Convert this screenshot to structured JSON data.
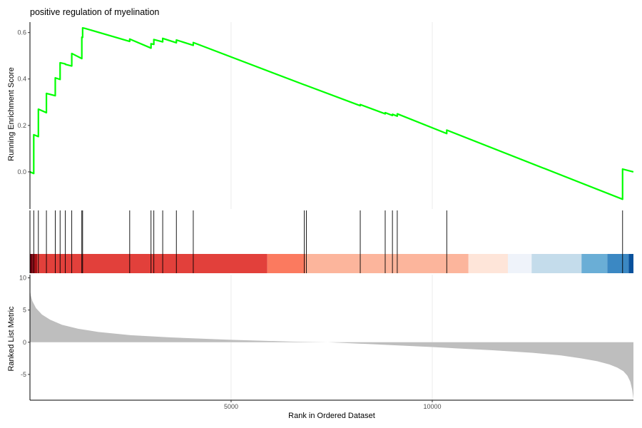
{
  "chart_data": [
    {
      "panel": "running-enrichment-score",
      "type": "line",
      "title": "positive regulation of myelination",
      "xlabel": "",
      "ylabel": "Running Enrichment Score",
      "xlim": [
        1,
        15000
      ],
      "ylim": [
        -0.16,
        0.645
      ],
      "yticks": [
        0.0,
        0.2,
        0.4,
        0.6
      ],
      "ytick_labels": [
        "0.0",
        "0.2",
        "0.4",
        "0.6"
      ],
      "grid": true,
      "line_color": "#00FF00",
      "series": [
        {
          "x": [
            1,
            95,
            95,
            210,
            210,
            410,
            410,
            630,
            630,
            750,
            750,
            880,
            880,
            1040,
            1040,
            1290,
            1290,
            1310,
            1310,
            1370,
            2480,
            2480,
            3010,
            3010,
            3080,
            3080,
            3300,
            3300,
            3640,
            3640,
            4060,
            4060,
            6820,
            6870,
            6870,
            8210,
            8210,
            8830,
            8830,
            9010,
            9010,
            9130,
            9130,
            10360,
            10360,
            14730,
            14730,
            14999
          ],
          "y": [
            0.0,
            -0.007,
            0.16,
            0.152,
            0.27,
            0.255,
            0.338,
            0.328,
            0.405,
            0.398,
            0.47,
            0.465,
            0.463,
            0.456,
            0.51,
            0.488,
            0.58,
            0.579,
            0.62,
            0.618,
            0.562,
            0.572,
            0.533,
            0.552,
            0.549,
            0.57,
            0.56,
            0.575,
            0.556,
            0.568,
            0.545,
            0.557,
            0.375,
            0.372,
            0.372,
            0.285,
            0.29,
            0.25,
            0.255,
            0.243,
            0.248,
            0.24,
            0.25,
            0.165,
            0.18,
            -0.118,
            0.012,
            0.0
          ]
        }
      ]
    },
    {
      "panel": "gene-set-hits",
      "type": "rug",
      "xlim": [
        1,
        15000
      ],
      "hit_positions": [
        95,
        210,
        410,
        630,
        750,
        880,
        1040,
        1290,
        1310,
        2480,
        3010,
        3080,
        3300,
        3640,
        4060,
        6820,
        6870,
        8210,
        8830,
        9010,
        9130,
        10360,
        14730
      ],
      "rank_color_bands": [
        {
          "from": 1,
          "to": 70,
          "color": "#67000D"
        },
        {
          "from": 70,
          "to": 180,
          "color": "#A50F15"
        },
        {
          "from": 180,
          "to": 5900,
          "color": "#E2403B"
        },
        {
          "from": 5900,
          "to": 6850,
          "color": "#FB7A5F"
        },
        {
          "from": 6850,
          "to": 10900,
          "color": "#FCB59C"
        },
        {
          "from": 10900,
          "to": 11880,
          "color": "#FEE5D9"
        },
        {
          "from": 11880,
          "to": 12470,
          "color": "#EFF3FA"
        },
        {
          "from": 12470,
          "to": 13710,
          "color": "#C4DCEB"
        },
        {
          "from": 13710,
          "to": 14350,
          "color": "#6AAED6"
        },
        {
          "from": 14350,
          "to": 14880,
          "color": "#3B88C3"
        },
        {
          "from": 14880,
          "to": 15000,
          "color": "#08519C"
        }
      ]
    },
    {
      "panel": "ranked-list-metric",
      "type": "area",
      "xlabel": "Rank in Ordered Dataset",
      "ylabel": "Ranked List Metric",
      "xlim": [
        1,
        15000
      ],
      "ylim": [
        -9,
        10.5
      ],
      "xticks": [
        5000,
        10000
      ],
      "xtick_labels": [
        "5000",
        "10000"
      ],
      "yticks": [
        -5,
        0,
        5,
        10
      ],
      "ytick_labels": [
        "-5",
        "0",
        "5",
        "10"
      ],
      "grid": true,
      "fill_color": "#BEBEBE",
      "series": [
        {
          "x": [
            1,
            20,
            60,
            150,
            300,
            500,
            800,
            1200,
            1700,
            2500,
            3500,
            5000,
            6500,
            7400,
            8500,
            10000,
            11500,
            12500,
            13200,
            13700,
            14100,
            14400,
            14600,
            14750,
            14850,
            14920,
            14970,
            15000
          ],
          "y": [
            8.2,
            7.3,
            6.4,
            5.3,
            4.3,
            3.5,
            2.7,
            2.1,
            1.6,
            1.1,
            0.75,
            0.38,
            0.1,
            0.0,
            -0.3,
            -0.75,
            -1.25,
            -1.65,
            -2.05,
            -2.5,
            -2.95,
            -3.45,
            -3.95,
            -4.5,
            -5.2,
            -6.1,
            -7.4,
            -8.8
          ]
        }
      ]
    }
  ]
}
